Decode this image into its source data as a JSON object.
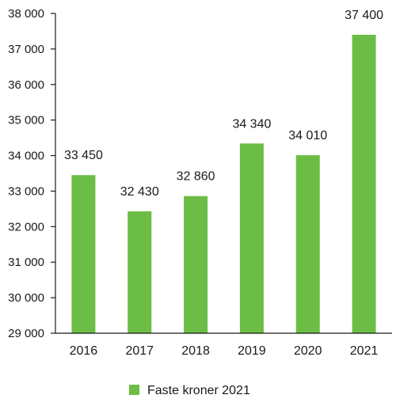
{
  "chart_data": {
    "type": "bar",
    "title": "",
    "xlabel": "",
    "ylabel": "",
    "categories": [
      "2016",
      "2017",
      "2018",
      "2019",
      "2020",
      "2021"
    ],
    "series": [
      {
        "name": "Faste kroner 2021",
        "values": [
          33450,
          32430,
          32860,
          34340,
          34010,
          37400
        ],
        "value_labels": [
          "33 450",
          "32 430",
          "32 860",
          "34 340",
          "34 010",
          "37 400"
        ]
      }
    ],
    "ylim": [
      29000,
      38000
    ],
    "yticks": [
      29000,
      30000,
      31000,
      32000,
      33000,
      34000,
      35000,
      36000,
      37000,
      38000
    ],
    "ytick_labels": [
      "29 000",
      "30 000",
      "31 000",
      "32 000",
      "33 000",
      "34 000",
      "35 000",
      "36 000",
      "37 000",
      "38 000"
    ],
    "grid": false,
    "legend_position": "bottom-center",
    "bar_color": "#6cbd45"
  }
}
